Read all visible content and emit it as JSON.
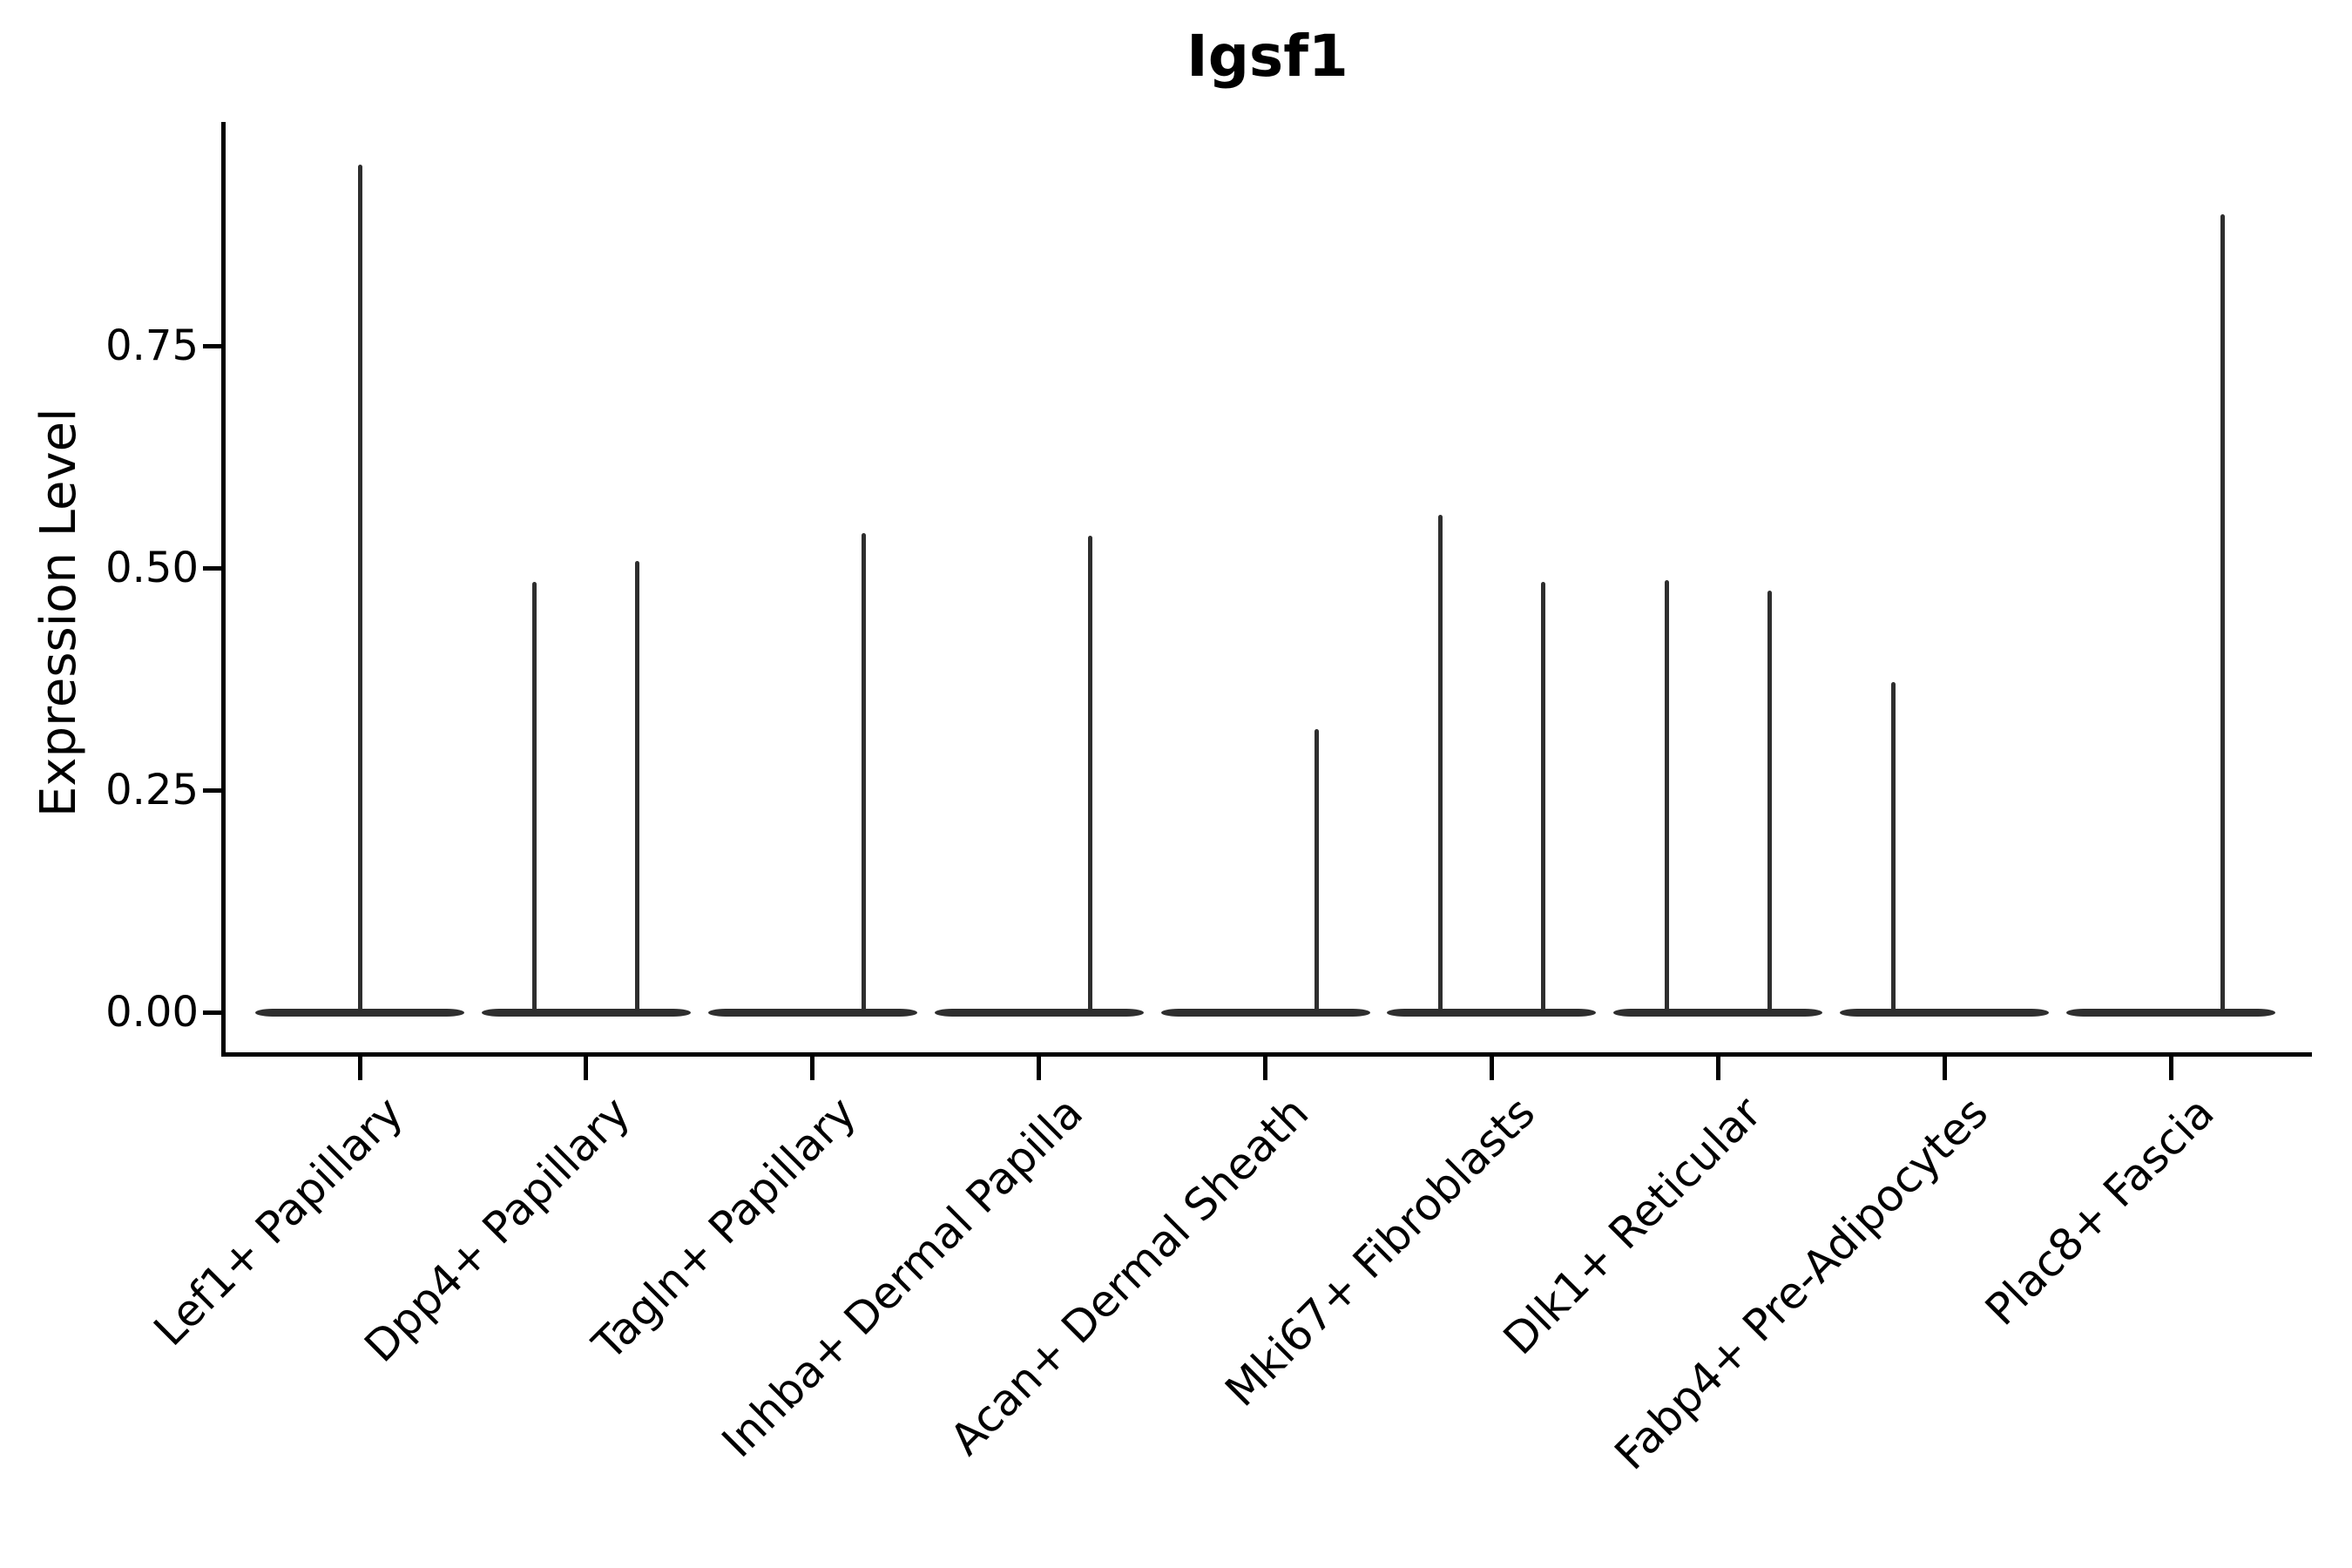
{
  "title": "Igsf1",
  "y_axis": {
    "label": "Expression Level",
    "ticks": [
      {
        "label": "0.00",
        "value": 0.0
      },
      {
        "label": "0.25",
        "value": 0.25
      },
      {
        "label": "0.50",
        "value": 0.5
      },
      {
        "label": "0.75",
        "value": 0.75
      }
    ]
  },
  "x_axis": {
    "categories": [
      "Lef1+ Papillary",
      "Dpp4+ Papillary",
      "Tagln+ Papillary",
      "Inhba+ Dermal Papilla",
      "Acan+ Dermal Sheath",
      "Mki67+ Fibroblasts",
      "Dlk1+ Reticular",
      "Fabp4+ Pre-Adipocytes",
      "Plac8+ Fascia"
    ]
  },
  "chart_data": {
    "type": "violin",
    "title": "Igsf1",
    "xlabel": "",
    "ylabel": "Expression Level",
    "ylim": [
      0,
      1.0
    ],
    "yticks": [
      0.0,
      0.25,
      0.5,
      0.75
    ],
    "grid": false,
    "legend": false,
    "categories": [
      "Lef1+ Papillary",
      "Dpp4+ Papillary",
      "Tagln+ Papillary",
      "Inhba+ Dermal Papilla",
      "Acan+ Dermal Sheath",
      "Mki67+ Fibroblasts",
      "Dlk1+ Reticular",
      "Fabp4+ Pre-Adipocytes",
      "Plac8+ Fascia"
    ],
    "description": "Each cell type shows a violin collapsed to a flat line at expression 0 with thin spikes rising to the maximum expression of rare expressing cells; some categories contain two dodged sub-violins (left/right spikes).",
    "violins": [
      {
        "category": "Lef1+ Papillary",
        "baseline_value": 0,
        "spikes": [
          {
            "offset": "center",
            "max": 0.954
          }
        ]
      },
      {
        "category": "Dpp4+ Papillary",
        "baseline_value": 0,
        "spikes": [
          {
            "offset": "left",
            "max": 0.484
          },
          {
            "offset": "right",
            "max": 0.508
          }
        ]
      },
      {
        "category": "Tagln+ Papillary",
        "baseline_value": 0,
        "spikes": [
          {
            "offset": "right",
            "max": 0.539
          }
        ]
      },
      {
        "category": "Inhba+ Dermal Papilla",
        "baseline_value": 0,
        "spikes": [
          {
            "offset": "right",
            "max": 0.536
          }
        ]
      },
      {
        "category": "Acan+ Dermal Sheath",
        "baseline_value": 0,
        "spikes": [
          {
            "offset": "right",
            "max": 0.319
          }
        ]
      },
      {
        "category": "Mki67+ Fibroblasts",
        "baseline_value": 0,
        "spikes": [
          {
            "offset": "left",
            "max": 0.56
          },
          {
            "offset": "right",
            "max": 0.484
          }
        ]
      },
      {
        "category": "Dlk1+ Reticular",
        "baseline_value": 0,
        "spikes": [
          {
            "offset": "left",
            "max": 0.486
          },
          {
            "offset": "right",
            "max": 0.475
          }
        ]
      },
      {
        "category": "Fabp4+ Pre-Adipocytes",
        "baseline_value": 0,
        "spikes": [
          {
            "offset": "left",
            "max": 0.372
          }
        ]
      },
      {
        "category": "Plac8+ Fascia",
        "baseline_value": 0,
        "spikes": [
          {
            "offset": "right",
            "max": 0.898
          }
        ]
      }
    ],
    "colors": {
      "violin": "#2e2e2e",
      "axis": "#000000",
      "text": "#000000",
      "background": "#ffffff"
    }
  }
}
